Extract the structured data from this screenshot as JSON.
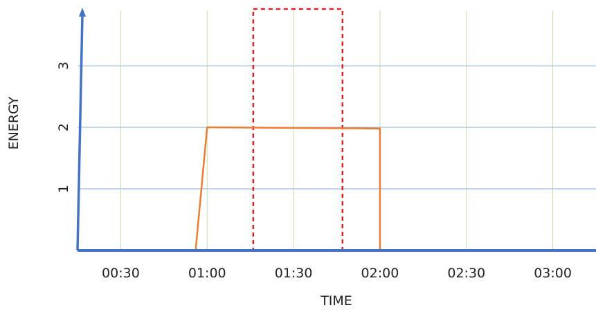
{
  "chart_data": {
    "type": "line",
    "xlabel": "TIME",
    "ylabel": "ENERGY",
    "x_ticks": [
      "00:30",
      "01:00",
      "01:30",
      "02:00",
      "02:30",
      "03:00"
    ],
    "y_ticks": [
      "1",
      "2",
      "3"
    ],
    "xlim": [
      "00:15",
      "03:15"
    ],
    "ylim": [
      0,
      3.9
    ],
    "grid": {
      "horizontal": true,
      "vertical": true
    },
    "series": [
      {
        "color": "#ed7d31",
        "points": [
          {
            "x": "00:56",
            "y": 0
          },
          {
            "x": "01:00",
            "y": 2.0
          },
          {
            "x": "02:00",
            "y": 1.98
          },
          {
            "x": "02:00",
            "y": 0
          }
        ]
      }
    ],
    "highlight_region": {
      "x_start": "01:16",
      "x_end": "01:47",
      "color": "#e02020",
      "style": "dashed"
    },
    "colors": {
      "axis": "#4472c4",
      "h_grid": "#8faadc",
      "v_grid": "#a9d18e"
    }
  }
}
